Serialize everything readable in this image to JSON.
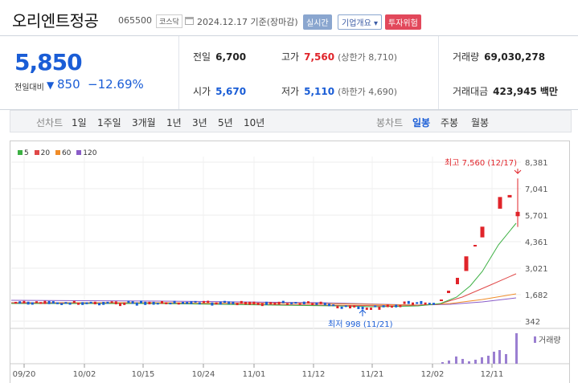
{
  "header": {
    "title": "오리엔트정공",
    "code": "065500",
    "market": "코스닥",
    "date": "2024.12.17",
    "basis": "기준(장마감)",
    "realtime_label": "실시간",
    "company_info_label": "기업개요",
    "company_info_caret": "▾",
    "risk_label": "투자위험"
  },
  "price": {
    "current": "5,850",
    "change_label": "전일대비",
    "change_arrow": "▼",
    "change_value": "850",
    "change_pct": "−12.69%"
  },
  "stats": {
    "prev_label": "전일",
    "prev_value": "6,700",
    "high_label": "고가",
    "high_value": "7,560",
    "upper_limit": "(상한가 8,710)",
    "volume_label": "거래량",
    "volume_value": "69,030,278",
    "open_label": "시가",
    "open_value": "5,670",
    "low_label": "저가",
    "low_value": "5,110",
    "lower_limit": "(하한가 4,690)",
    "amount_label": "거래대금",
    "amount_value": "423,945",
    "amount_unit": "백만"
  },
  "period_bar": {
    "line_label": "선차트",
    "line_periods": [
      "1일",
      "1주일",
      "3개월",
      "1년",
      "3년",
      "5년",
      "10년"
    ],
    "candle_label": "봉차트",
    "candle_periods": [
      "일봉",
      "주봉",
      "월봉"
    ],
    "selected": "일봉"
  },
  "legend": [
    {
      "name": "5",
      "color": "#3cb043"
    },
    {
      "name": "20",
      "color": "#e04848"
    },
    {
      "name": "60",
      "color": "#f08c28"
    },
    {
      "name": "120",
      "color": "#8a5cc8"
    }
  ],
  "chart_data": {
    "type": "candlestick",
    "y_ticks": [
      "8,381",
      "7,041",
      "5,701",
      "4,361",
      "3,021",
      "1,682",
      "342"
    ],
    "x_ticks": [
      "09/20",
      "10/02",
      "10/15",
      "10/24",
      "11/01",
      "11/12",
      "11/21",
      "12/02",
      "12/11"
    ],
    "ylim": [
      342,
      8381
    ],
    "high_annotation": "최고 7,560 (12/17)",
    "low_annotation": "최저 998 (11/21)",
    "volume_label": "거래량",
    "recent_candles": [
      {
        "date": "12/05",
        "open": 2900,
        "close": 3600
      },
      {
        "date": "12/10",
        "open": 4600,
        "close": 5100
      },
      {
        "date": "12/12",
        "open": 6050,
        "close": 6600
      },
      {
        "date": "12/16",
        "open": 6700,
        "close": 6700
      },
      {
        "date": "12/17",
        "open": 5670,
        "close": 5850,
        "high": 7560,
        "low": 5110
      }
    ]
  }
}
